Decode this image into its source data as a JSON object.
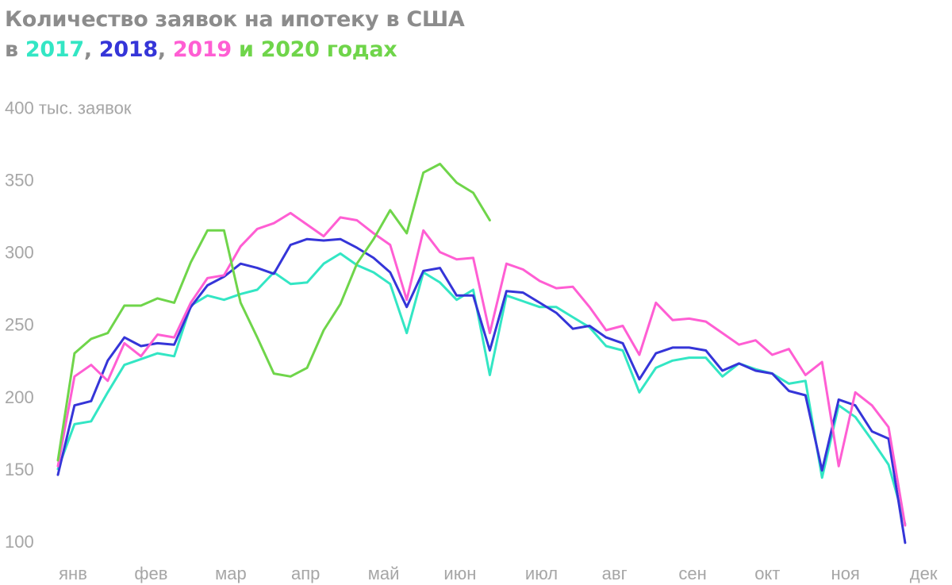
{
  "title": {
    "line1": "Количество заявок на ипотеку в США",
    "prefix": "в ",
    "y2017": "2017",
    "sep1": ", ",
    "y2018": "2018",
    "sep2": ", ",
    "y2019": "2019",
    "conj": " и ",
    "y2020": "2020",
    "suffix": " годах"
  },
  "chart_data": {
    "type": "line",
    "title": "Количество заявок на ипотеку в США в 2017, 2018, 2019 и 2020 годах",
    "ylabel": "тыс. заявок",
    "ylim": [
      100,
      400
    ],
    "yticks": [
      100,
      150,
      200,
      250,
      300,
      350,
      400
    ],
    "top_tick_label": "400 тыс. заявок",
    "weeks": 52,
    "xticks": [
      {
        "label": "янв",
        "week": 1
      },
      {
        "label": "фев",
        "week": 5.7
      },
      {
        "label": "мар",
        "week": 10.5
      },
      {
        "label": "апр",
        "week": 15
      },
      {
        "label": "май",
        "week": 19.7
      },
      {
        "label": "июн",
        "week": 24.3
      },
      {
        "label": "июл",
        "week": 29.2
      },
      {
        "label": "авг",
        "week": 33.6
      },
      {
        "label": "сен",
        "week": 38.3
      },
      {
        "label": "окт",
        "week": 42.8
      },
      {
        "label": "ноя",
        "week": 47.5
      },
      {
        "label": "дек",
        "week": 52.2
      }
    ],
    "series": [
      {
        "name": "2017",
        "color": "#33e6c4",
        "values": [
          150,
          181,
          183,
          203,
          222,
          226,
          230,
          228,
          263,
          270,
          267,
          271,
          274,
          286,
          278,
          279,
          292,
          299,
          291,
          286,
          278,
          244,
          286,
          279,
          267,
          274,
          215,
          270,
          266,
          262,
          262,
          255,
          248,
          235,
          232,
          203,
          220,
          225,
          227,
          227,
          214,
          223,
          219,
          216,
          209,
          211,
          144,
          194,
          186,
          170,
          153,
          112
        ]
      },
      {
        "name": "2018",
        "color": "#3535d8",
        "values": [
          146,
          194,
          197,
          225,
          241,
          235,
          237,
          236,
          262,
          277,
          283,
          292,
          289,
          285,
          305,
          309,
          308,
          309,
          303,
          296,
          286,
          262,
          287,
          289,
          270,
          270,
          232,
          273,
          272,
          265,
          258,
          247,
          249,
          241,
          237,
          212,
          230,
          234,
          234,
          232,
          218,
          223,
          218,
          216,
          204,
          201,
          149,
          198,
          194,
          176,
          171,
          99
        ]
      },
      {
        "name": "2019",
        "color": "#ff5ed3",
        "values": [
          152,
          214,
          222,
          211,
          237,
          228,
          243,
          241,
          265,
          282,
          284,
          304,
          316,
          320,
          327,
          319,
          311,
          324,
          322,
          313,
          305,
          267,
          315,
          300,
          295,
          296,
          244,
          292,
          288,
          280,
          275,
          276,
          262,
          246,
          249,
          229,
          265,
          253,
          254,
          252,
          244,
          236,
          239,
          229,
          233,
          215,
          224,
          152,
          203,
          194,
          179,
          111
        ]
      },
      {
        "name": "2020",
        "color": "#6fd54a",
        "values": [
          156,
          230,
          240,
          244,
          263,
          263,
          268,
          265,
          293,
          315,
          315,
          265,
          241,
          216,
          214,
          220,
          246,
          264,
          292,
          309,
          329,
          313,
          355,
          361,
          348,
          341,
          322
        ]
      }
    ]
  }
}
